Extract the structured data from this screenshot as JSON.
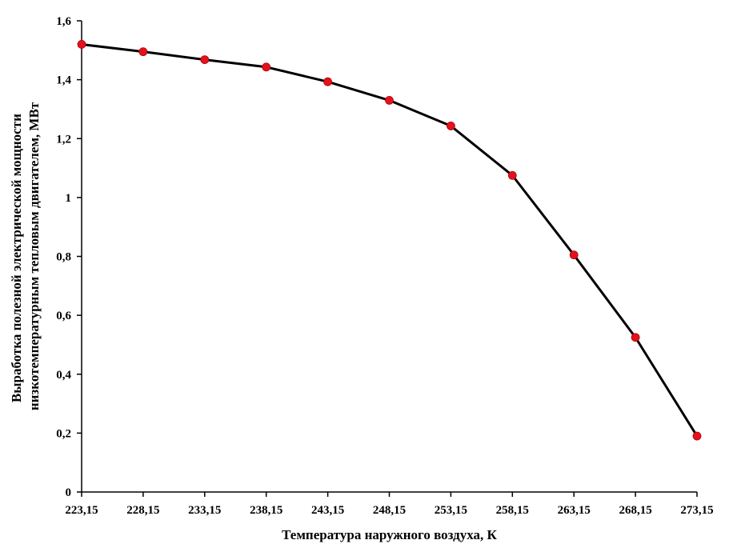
{
  "chart_data": {
    "type": "line",
    "title": "",
    "xlabel": "Температура наружного воздуха, К",
    "ylabel_lines": [
      "Выработка полезной электрической мощности",
      "низкотемпературным тепловым двигателем, МВт"
    ],
    "categories": [
      "223,15",
      "228,15",
      "233,15",
      "238,15",
      "243,15",
      "248,15",
      "253,15",
      "258,15",
      "263,15",
      "268,15",
      "273,15"
    ],
    "series": [
      {
        "values": [
          1.52,
          1.495,
          1.468,
          1.443,
          1.393,
          1.33,
          1.243,
          1.075,
          0.805,
          0.525,
          0.19
        ],
        "line_color": "#000000",
        "marker_color": "#e3131b"
      }
    ],
    "ylim": [
      0,
      1.6
    ],
    "yticks": [
      0,
      0.2,
      0.4,
      0.6,
      0.8,
      1,
      1.2,
      1.4,
      1.6
    ],
    "ytick_labels": [
      "0",
      "0,2",
      "0,4",
      "0,6",
      "0,8",
      "1",
      "1,2",
      "1,4",
      "1,6"
    ],
    "grid": false,
    "legend": "none"
  }
}
